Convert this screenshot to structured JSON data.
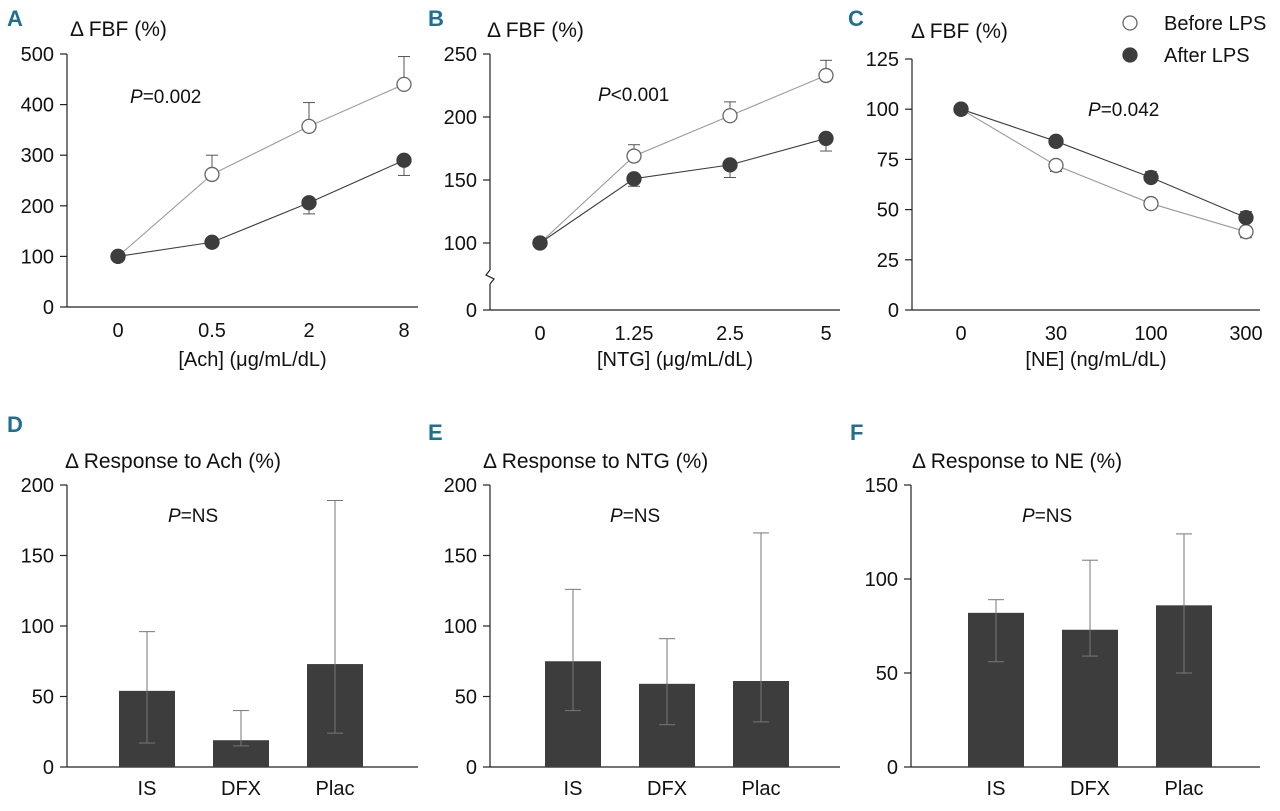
{
  "figure": {
    "legend": {
      "before": "Before LPS",
      "after": "After LPS"
    }
  },
  "chart_data": [
    {
      "id": "A",
      "type": "line",
      "panel_label": "A",
      "ylabel": "Δ FBF (%)",
      "xlabel": "[Ach] (μg/mL/dL)",
      "categories": [
        "0",
        "0.5",
        "2",
        "8"
      ],
      "ylim": [
        0,
        500
      ],
      "yticks": [
        0,
        100,
        200,
        300,
        400,
        500
      ],
      "p_italic": "P",
      "p_rest": "=0.002",
      "series": [
        {
          "name": "Before LPS",
          "marker": "open",
          "values": [
            100,
            262,
            357,
            440
          ],
          "err_up": [
            0,
            38,
            47,
            55
          ],
          "err_down": [
            0,
            0,
            0,
            0
          ]
        },
        {
          "name": "After LPS",
          "marker": "filled",
          "values": [
            100,
            128,
            206,
            290
          ],
          "err_up": [
            0,
            0,
            0,
            0
          ],
          "err_down": [
            0,
            0,
            22,
            30
          ]
        }
      ]
    },
    {
      "id": "B",
      "type": "line",
      "panel_label": "B",
      "ylabel": "Δ FBF (%)",
      "xlabel": "[NTG] (μg/mL/dL)",
      "categories": [
        "0",
        "1.25",
        "2.5",
        "5"
      ],
      "ylim": [
        0,
        250
      ],
      "yticks": [
        0,
        100,
        150,
        200,
        250
      ],
      "axis_break": true,
      "break_low": 0,
      "break_high": 75,
      "p_italic": "P",
      "p_rest": "<0.001",
      "series": [
        {
          "name": "Before LPS",
          "marker": "open",
          "values": [
            100,
            169,
            201,
            233
          ],
          "err_up": [
            0,
            9,
            11,
            12
          ],
          "err_down": [
            0,
            0,
            0,
            0
          ]
        },
        {
          "name": "After LPS",
          "marker": "filled",
          "values": [
            100,
            151,
            162,
            183
          ],
          "err_up": [
            0,
            0,
            0,
            0
          ],
          "err_down": [
            0,
            6,
            10,
            10
          ]
        }
      ]
    },
    {
      "id": "C",
      "type": "line",
      "panel_label": "C",
      "ylabel": "Δ FBF (%)",
      "xlabel": "[NE] (ng/mL/dL)",
      "categories": [
        "0",
        "30",
        "100",
        "300"
      ],
      "ylim": [
        0,
        125
      ],
      "yticks": [
        0,
        25,
        50,
        75,
        100,
        125
      ],
      "p_italic": "P",
      "p_rest": "=0.042",
      "series": [
        {
          "name": "Before LPS",
          "marker": "open",
          "values": [
            100,
            72,
            53,
            39
          ],
          "err_up": [
            0,
            0,
            0,
            0
          ],
          "err_down": [
            0,
            3,
            0,
            3
          ]
        },
        {
          "name": "After LPS",
          "marker": "filled",
          "values": [
            100,
            84,
            66,
            46
          ],
          "err_up": [
            0,
            0,
            3,
            3
          ],
          "err_down": [
            0,
            0,
            0,
            0
          ]
        }
      ]
    },
    {
      "id": "D",
      "type": "bar",
      "panel_label": "D",
      "ylabel": "Δ Response to Ach (%)",
      "categories": [
        "IS",
        "DFX",
        "Plac"
      ],
      "ylim": [
        0,
        200
      ],
      "yticks": [
        0,
        50,
        100,
        150,
        200
      ],
      "p_italic": "P",
      "p_rest": "=NS",
      "values": [
        54,
        19,
        73
      ],
      "err_up": [
        96,
        40,
        189
      ],
      "err_down": [
        17,
        15,
        24
      ]
    },
    {
      "id": "E",
      "type": "bar",
      "panel_label": "E",
      "ylabel": "Δ Response to NTG (%)",
      "categories": [
        "IS",
        "DFX",
        "Plac"
      ],
      "ylim": [
        0,
        200
      ],
      "yticks": [
        0,
        50,
        100,
        150,
        200
      ],
      "p_italic": "P",
      "p_rest": "=NS",
      "values": [
        75,
        59,
        61
      ],
      "err_up": [
        126,
        91,
        166
      ],
      "err_down": [
        40,
        30,
        32
      ]
    },
    {
      "id": "F",
      "type": "bar",
      "panel_label": "F",
      "ylabel": "Δ Response to NE (%)",
      "categories": [
        "IS",
        "DFX",
        "Plac"
      ],
      "ylim": [
        0,
        150
      ],
      "yticks": [
        0,
        50,
        100,
        150
      ],
      "p_italic": "P",
      "p_rest": "=NS",
      "values": [
        82,
        73,
        86
      ],
      "err_up": [
        89,
        110,
        124
      ],
      "err_down": [
        56,
        59,
        50
      ]
    }
  ]
}
